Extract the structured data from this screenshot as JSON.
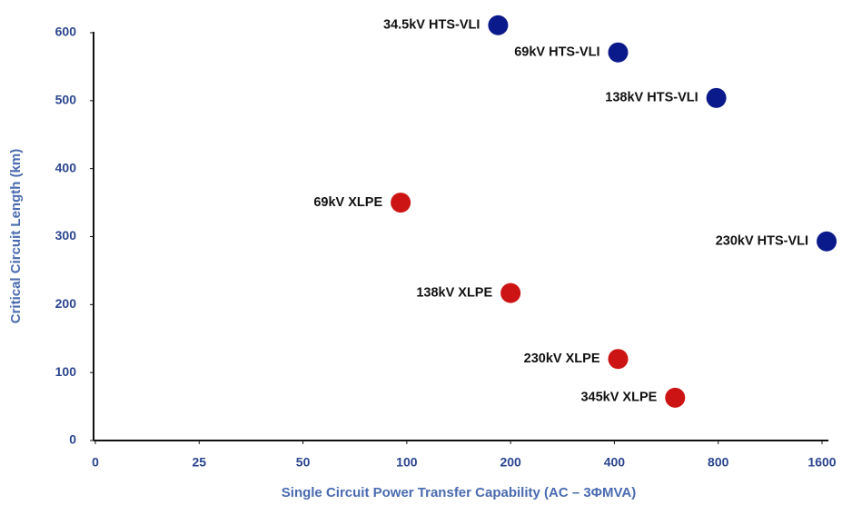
{
  "chart_data": {
    "type": "scatter",
    "x_label": "Single Circuit Power Transfer Capability (AC – 3ΦMVA)",
    "y_label": "Critical Circuit Length (km)",
    "xlim": [
      0,
      1650
    ],
    "xticks": [
      0,
      25,
      50,
      100,
      200,
      400,
      800,
      1600
    ],
    "xscale": "log",
    "ylim": [
      0,
      600
    ],
    "yticks": [
      0,
      100,
      200,
      300,
      400,
      500,
      600
    ],
    "grid": false,
    "points": [
      {
        "label": "34.5kV HTS-VLI",
        "x": 184,
        "y": 611,
        "color": "#0b1a8a"
      },
      {
        "label": "69kV HTS-VLI",
        "x": 410,
        "y": 571,
        "color": "#0b1a8a"
      },
      {
        "label": "138kV HTS-VLI",
        "x": 790,
        "y": 504,
        "color": "#0b1a8a"
      },
      {
        "label": "230kV HTS-VLI",
        "x": 1650,
        "y": 293,
        "color": "#0b1a8a"
      },
      {
        "label": "69kV XLPE",
        "x": 96,
        "y": 350,
        "color": "#cc1414"
      },
      {
        "label": "138kV XLPE",
        "x": 200,
        "y": 217,
        "color": "#cc1414"
      },
      {
        "label": "230kV XLPE",
        "x": 410,
        "y": 120,
        "color": "#cc1414"
      },
      {
        "label": "345kV XLPE",
        "x": 600,
        "y": 63,
        "color": "#cc1414"
      }
    ]
  }
}
